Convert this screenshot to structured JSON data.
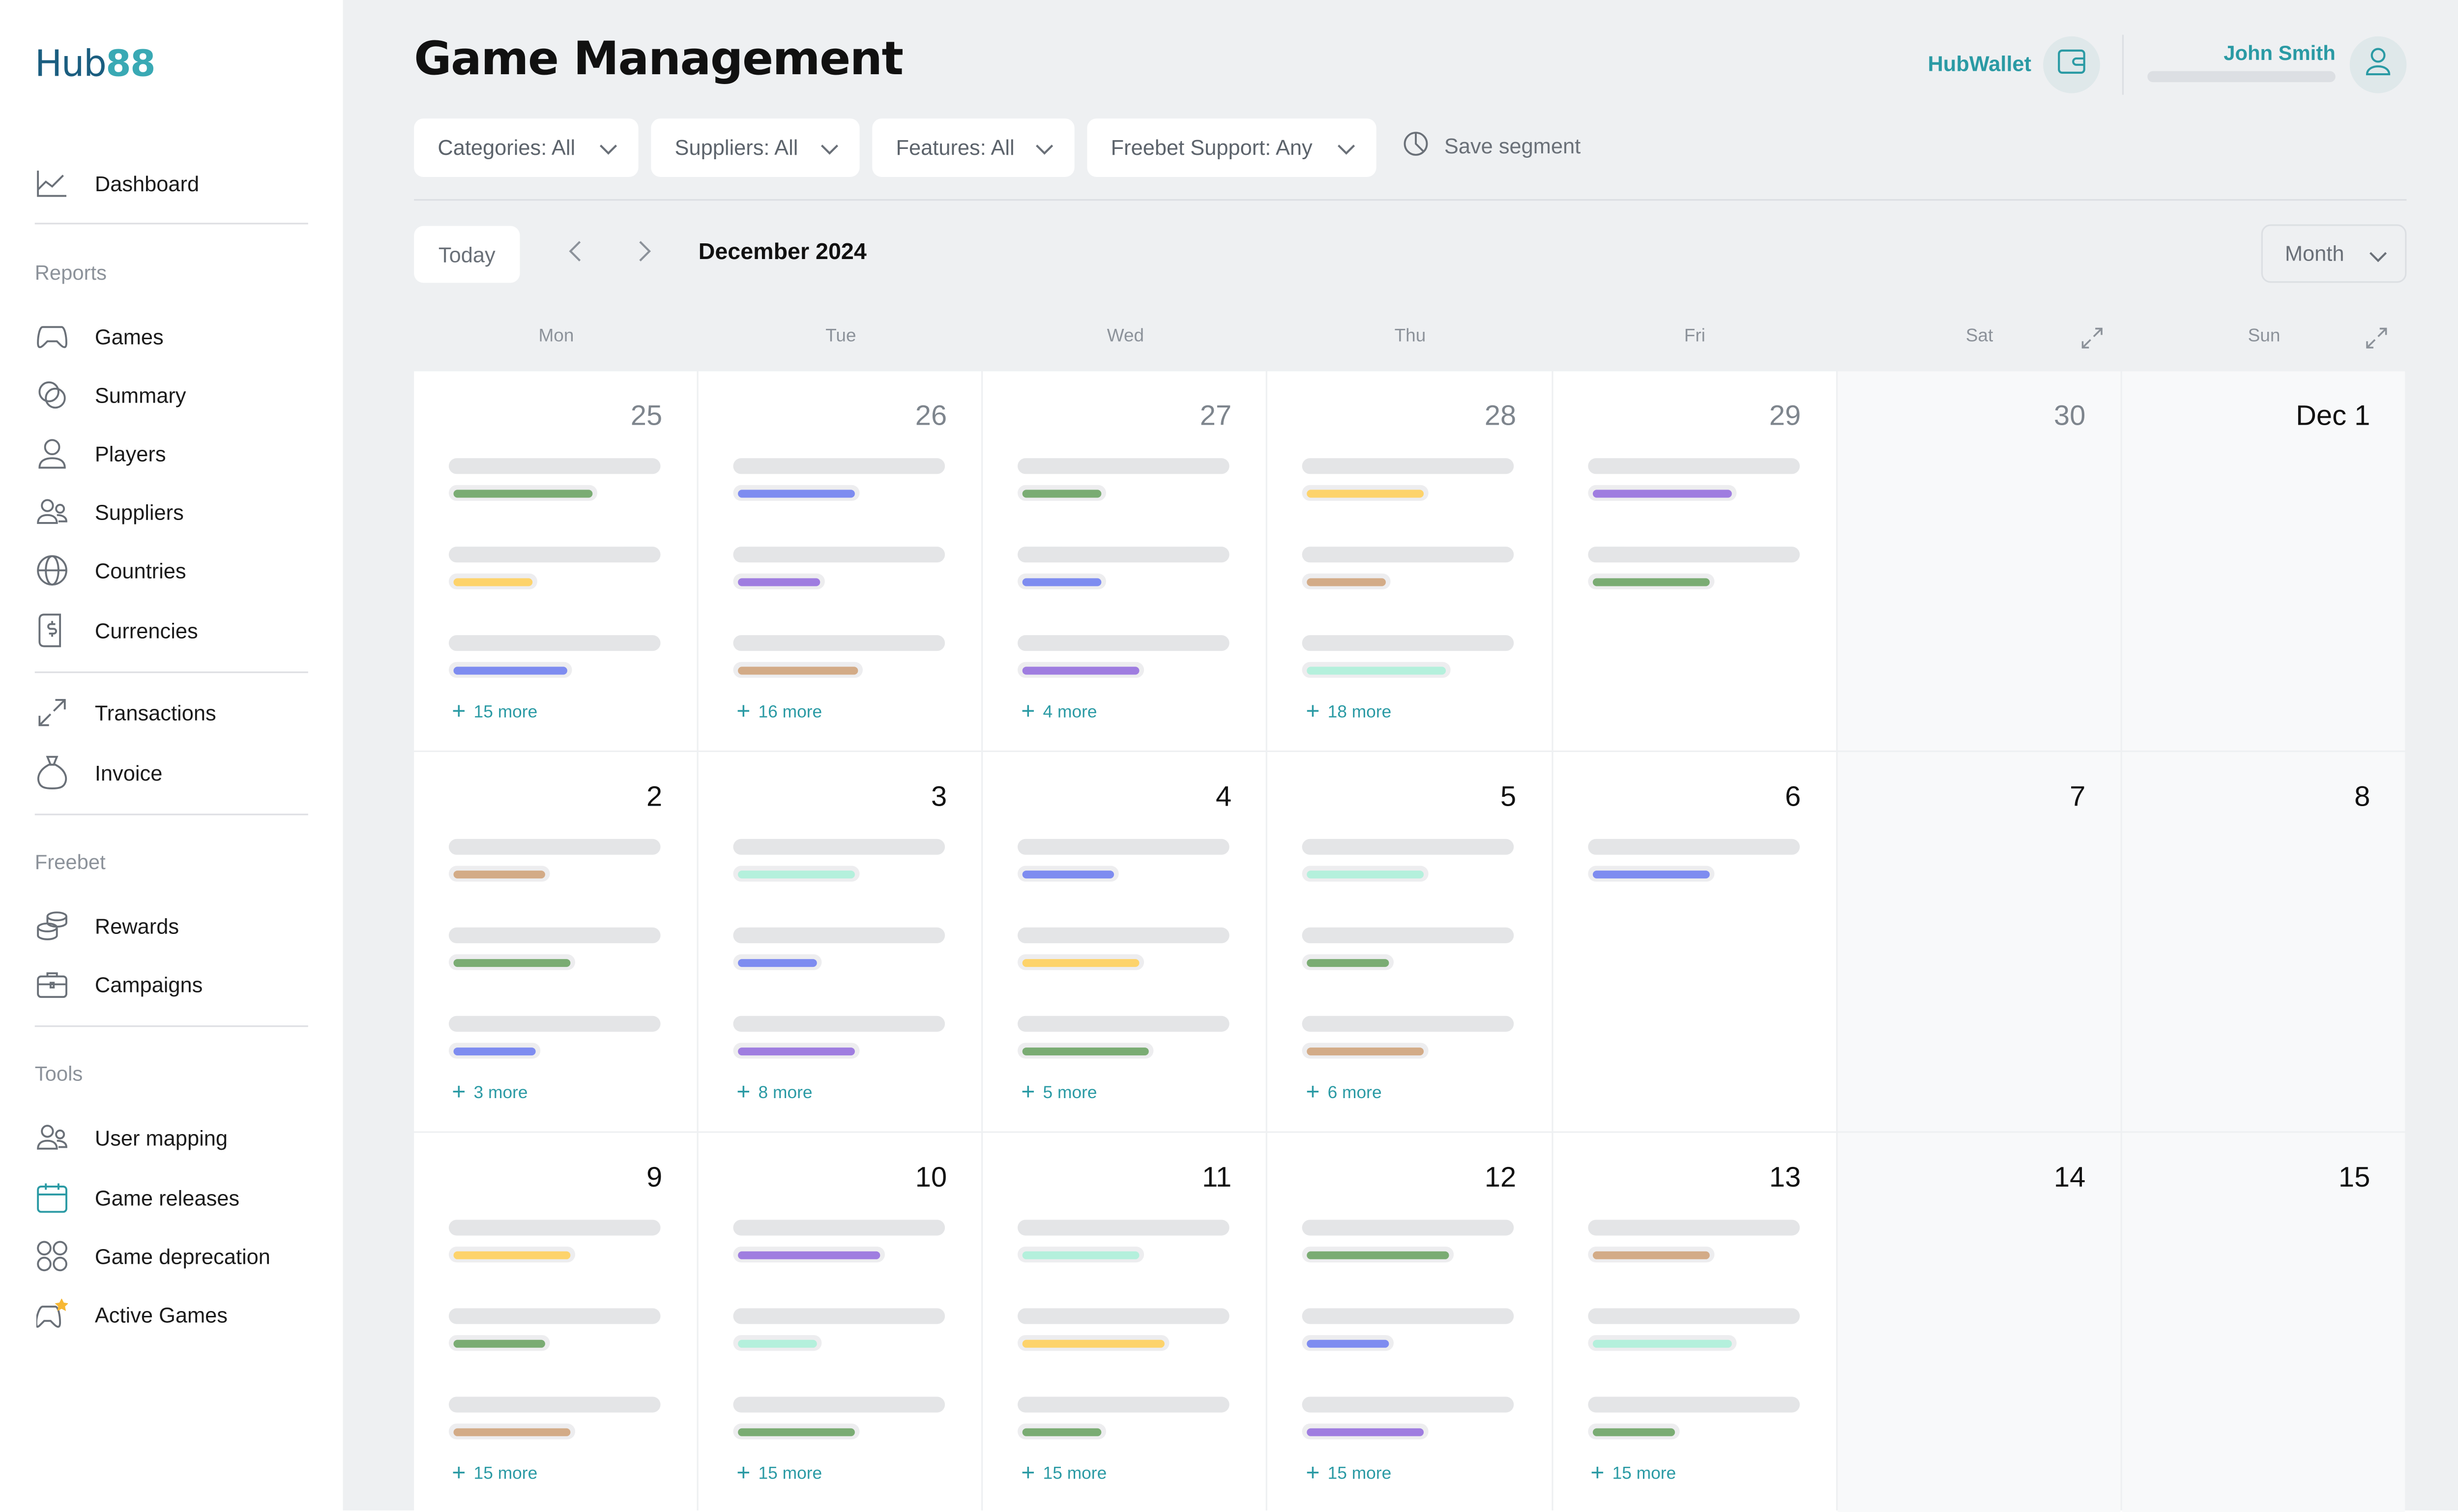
{
  "logo": {
    "text_h": "H",
    "text_ub": "ub",
    "text_88": "88"
  },
  "nav": {
    "top": [
      {
        "label": "Dashboard",
        "icon": "chart-icon"
      }
    ],
    "reports_title": "Reports",
    "reports": [
      {
        "label": "Games",
        "icon": "gamepad-icon"
      },
      {
        "label": "Summary",
        "icon": "circles-icon"
      },
      {
        "label": "Players",
        "icon": "user-icon"
      },
      {
        "label": "Suppliers",
        "icon": "users-icon"
      },
      {
        "label": "Countries",
        "icon": "globe-icon"
      },
      {
        "label": "Currencies",
        "icon": "dollar-doc-icon"
      }
    ],
    "mid": [
      {
        "label": "Transactions",
        "icon": "arrows-diagonal-icon"
      },
      {
        "label": "Invoice",
        "icon": "moneybag-icon"
      }
    ],
    "freebet_title": "Freebet",
    "freebet": [
      {
        "label": "Rewards",
        "icon": "coins-icon"
      },
      {
        "label": "Campaigns",
        "icon": "briefcase-icon"
      }
    ],
    "tools_title": "Tools",
    "tools": [
      {
        "label": "User mapping",
        "icon": "users-icon"
      },
      {
        "label": "Game releases",
        "icon": "calendar-icon"
      },
      {
        "label": "Game deprecation",
        "icon": "grid-circles-icon"
      },
      {
        "label": "Active Games",
        "icon": "gamepad-star-icon"
      }
    ]
  },
  "header": {
    "title": "Game Management",
    "wallet_label": "HubWallet",
    "user_name": "John Smith"
  },
  "filters": [
    {
      "label": "Categories: All"
    },
    {
      "label": "Suppliers: All"
    },
    {
      "label": "Features: All"
    },
    {
      "label": "Freebet Support: Any"
    }
  ],
  "save_segment": "Save segment",
  "calendar": {
    "today_label": "Today",
    "month_label": "December 2024",
    "view_label": "Month",
    "weekdays": [
      "Mon",
      "Tue",
      "Wed",
      "Thu",
      "Fri",
      "Sat",
      "Sun"
    ],
    "weeks": [
      [
        {
          "day": "25",
          "muted": true,
          "bars": [
            "#7aac73",
            "#fdd36b",
            "#7e8cf0"
          ],
          "more": "15 more"
        },
        {
          "day": "26",
          "muted": true,
          "bars": [
            "#7e8cf0",
            "#9f7de0",
            "#d3ab87"
          ],
          "more": "16 more"
        },
        {
          "day": "27",
          "muted": true,
          "bars": [
            "#7aac73",
            "#7e8cf0",
            "#9f7de0"
          ],
          "more": "4 more"
        },
        {
          "day": "28",
          "muted": true,
          "bars": [
            "#fdd36b",
            "#d3ab87",
            "#b4f0dc"
          ],
          "more": "18 more"
        },
        {
          "day": "29",
          "muted": true,
          "bars": [
            "#9f7de0",
            "#7aac73"
          ],
          "more": ""
        },
        {
          "day": "30",
          "muted": true,
          "bars": [],
          "more": ""
        },
        {
          "day": "Dec 1",
          "muted": false,
          "bars": [],
          "more": ""
        }
      ],
      [
        {
          "day": "2",
          "muted": false,
          "bars": [
            "#d3ab87",
            "#7aac73",
            "#7e8cf0"
          ],
          "more": "3 more"
        },
        {
          "day": "3",
          "muted": false,
          "bars": [
            "#b4f0dc",
            "#7e8cf0",
            "#9f7de0"
          ],
          "more": "8 more"
        },
        {
          "day": "4",
          "muted": false,
          "bars": [
            "#7e8cf0",
            "#fdd36b",
            "#7aac73"
          ],
          "more": "5 more"
        },
        {
          "day": "5",
          "muted": false,
          "bars": [
            "#b4f0dc",
            "#7aac73",
            "#d3ab87"
          ],
          "more": "6 more"
        },
        {
          "day": "6",
          "muted": false,
          "bars": [
            "#7e8cf0"
          ],
          "more": ""
        },
        {
          "day": "7",
          "muted": false,
          "bars": [],
          "more": ""
        },
        {
          "day": "8",
          "muted": false,
          "bars": [],
          "more": ""
        }
      ],
      [
        {
          "day": "9",
          "muted": false,
          "bars": [
            "#fdd36b",
            "#7aac73",
            "#d3ab87"
          ],
          "more": "15 more"
        },
        {
          "day": "10",
          "muted": false,
          "bars": [
            "#9f7de0",
            "#b4f0dc",
            "#7aac73"
          ],
          "more": "15 more"
        },
        {
          "day": "11",
          "muted": false,
          "bars": [
            "#b4f0dc",
            "#fdd36b",
            "#7aac73"
          ],
          "more": "15 more"
        },
        {
          "day": "12",
          "muted": false,
          "bars": [
            "#7aac73",
            "#7e8cf0",
            "#9f7de0"
          ],
          "more": "15 more"
        },
        {
          "day": "13",
          "muted": false,
          "bars": [
            "#d3ab87",
            "#b4f0dc",
            "#7aac73"
          ],
          "more": "15 more"
        },
        {
          "day": "14",
          "muted": false,
          "bars": [],
          "more": ""
        },
        {
          "day": "15",
          "muted": false,
          "bars": [],
          "more": ""
        }
      ]
    ]
  },
  "colors": {
    "accent": "#2a9aa4",
    "green": "#7aac73",
    "yellow": "#fdd36b",
    "blue": "#7e8cf0",
    "purple": "#9f7de0",
    "tan": "#d3ab87",
    "mint": "#b4f0dc"
  }
}
